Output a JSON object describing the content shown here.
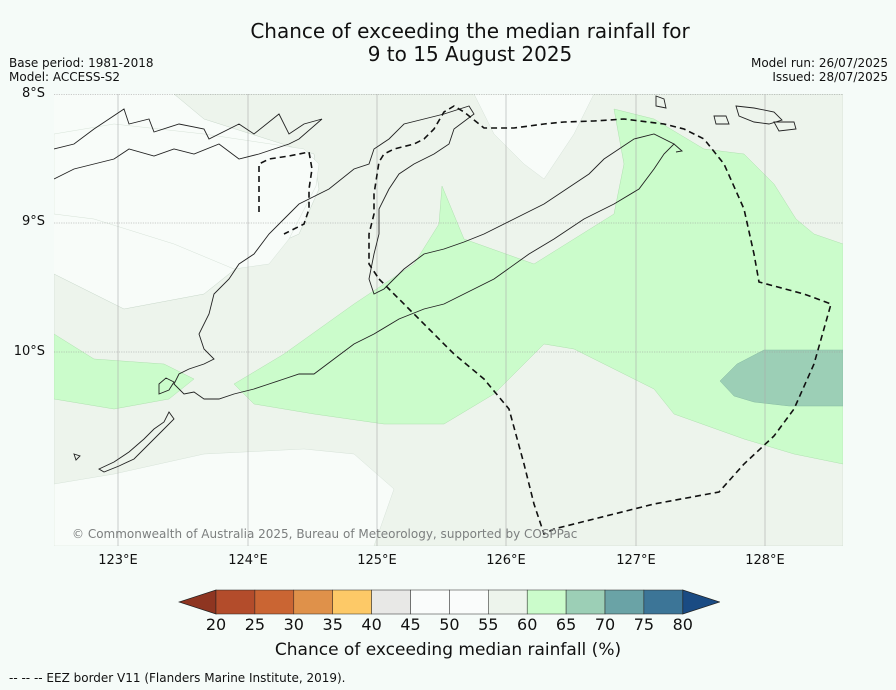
{
  "title_line1": "Chance of exceeding the median rainfall for",
  "title_line2": "9 to 15 August 2025",
  "base_period": "Base period: 1981-2018",
  "model": "Model: ACCESS-S2",
  "model_run": "Model run: 26/07/2025",
  "issued": "Issued: 28/07/2025",
  "lat_labels": [
    "8°S",
    "9°S",
    "10°S"
  ],
  "lon_labels": [
    "123°E",
    "124°E",
    "125°E",
    "126°E",
    "127°E",
    "128°E"
  ],
  "copyright": "© Commonwealth of Australia 2025, Bureau of Meteorology, supported by COSPPac",
  "colorbar": {
    "label": "Chance of exceeding median rainfall (%)",
    "ticks": [
      "20",
      "25",
      "30",
      "35",
      "40",
      "45",
      "50",
      "55",
      "60",
      "65",
      "70",
      "75",
      "80"
    ],
    "colors": [
      "#8e3521",
      "#b34c2b",
      "#ca6533",
      "#df914a",
      "#fdc967",
      "#e8e8e6",
      "#fafcfb",
      "#fafcfb",
      "#edf4ec",
      "#cbfccb",
      "#9ccfb6",
      "#6aa3a6",
      "#3c7597",
      "#1a4b83"
    ]
  },
  "eez_note": "--  --  -- EEZ border V11 (Flanders Marine Institute, 2019)."
}
